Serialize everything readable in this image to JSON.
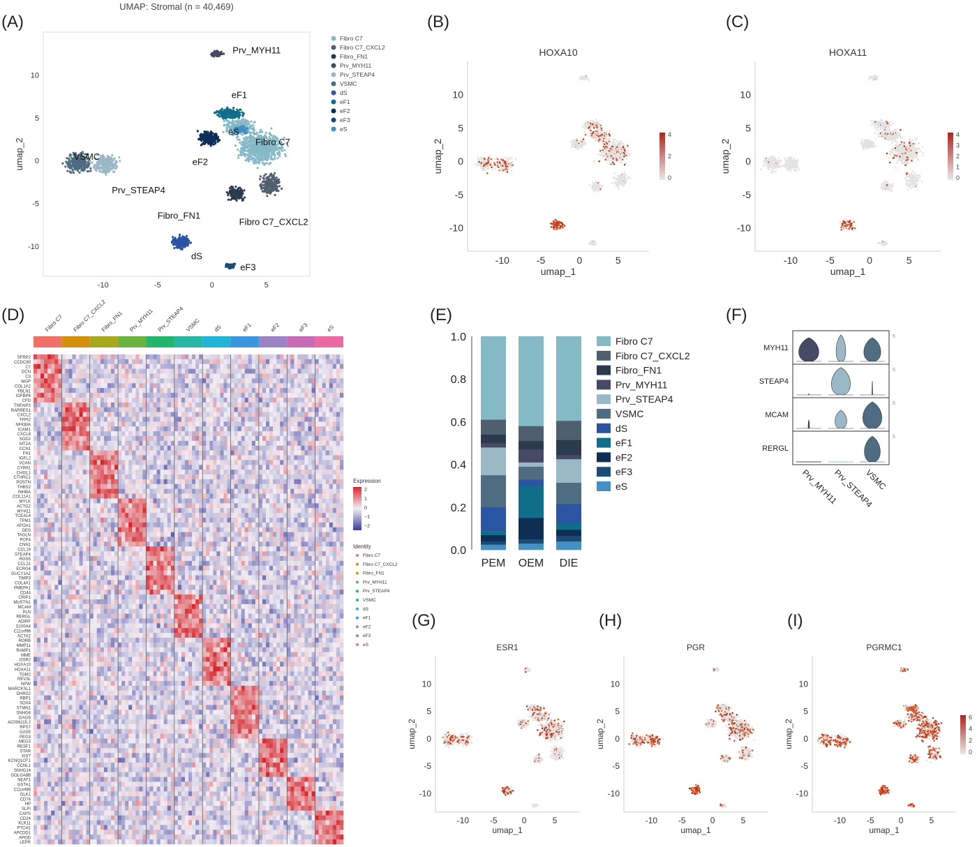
{
  "panel_labels": [
    "(A)",
    "(B)",
    "(C)",
    "(D)",
    "(E)",
    "(F)",
    "(G)",
    "(H)",
    "(I)"
  ],
  "colors": {
    "Fibro C7": "#86b9c6",
    "Fibro C7_CXCL2": "#505f6e",
    "Fibro_FN1": "#2c3a4d",
    "Prv_MYH11": "#474a65",
    "Prv_STEAP4": "#9bb8c6",
    "VSMC": "#4e6d82",
    "dS": "#2b55a3",
    "eF1": "#106e8a",
    "eF2": "#0f2e56",
    "eF3": "#1a4c77",
    "eS": "#4590c2",
    "expr_low": "#e8e8e8",
    "expr_high": "#b2231d",
    "heat_low": "#3b3c9c",
    "heat_mid": "#f2eef4",
    "heat_high": "#d6262b"
  },
  "chart_data": [
    {
      "id": "A",
      "type": "scatter",
      "title": "UMAP: Stromal (n = 40,469)",
      "xlabel": "",
      "ylabel": "umap_2",
      "xticks": [
        -10,
        -5,
        0,
        5
      ],
      "yticks": [
        10,
        5,
        0,
        -5,
        -10
      ],
      "xlim": [
        -15.5,
        9
      ],
      "ylim": [
        -13.5,
        15
      ],
      "legend_position": "top-right",
      "legend": [
        "Fibro C7",
        "Fibro C7_CXCL2",
        "Fibro_FN1",
        "Prv_MYH11",
        "Prv_STEAP4",
        "VSMC",
        "dS",
        "eF1",
        "eF2",
        "eF3",
        "eS"
      ],
      "clusters": [
        {
          "name": "Fibro C7",
          "x": 4.5,
          "y": 1.5,
          "label": "Fibro C7",
          "lx": 4.0,
          "ly": 1.8
        },
        {
          "name": "Fibro C7_CXCL2",
          "x": 5.3,
          "y": -3.5,
          "label": "Fibro C7_CXCL2",
          "lx": 2.5,
          "ly": -7.5
        },
        {
          "name": "Fibro_FN1",
          "x": 2.0,
          "y": -4.2,
          "label": "Fibro_FN1",
          "lx": -5.0,
          "ly": -6.8
        },
        {
          "name": "Prv_MYH11",
          "x": 0.5,
          "y": 12.5,
          "label": "Prv_MYH11",
          "lx": 1.9,
          "ly": 12.5
        },
        {
          "name": "Prv_STEAP4",
          "x": -9.5,
          "y": -0.2,
          "label": "Prv_STEAP4",
          "lx": -9.2,
          "ly": -3.8
        },
        {
          "name": "VSMC",
          "x": -12.5,
          "y": -0.5,
          "label": "VSMC",
          "lx": -12.7,
          "ly": 0.1
        },
        {
          "name": "dS",
          "x": -2.8,
          "y": -9.7,
          "label": "dS",
          "lx": -1.9,
          "ly": -11.5
        },
        {
          "name": "eF1",
          "x": 1.5,
          "y": 5.5,
          "label": "eF1",
          "lx": 1.8,
          "ly": 7.3
        },
        {
          "name": "eF2",
          "x": -0.3,
          "y": 2.2,
          "label": "eF2",
          "lx": -1.8,
          "ly": -0.5
        },
        {
          "name": "eF3",
          "x": 1.6,
          "y": -12.3,
          "label": "eF3",
          "lx": 2.6,
          "ly": -12.8
        },
        {
          "name": "eS",
          "x": 2.5,
          "y": 3.5,
          "label": "eS",
          "lx": 1.5,
          "ly": 3.0
        }
      ]
    },
    {
      "id": "B",
      "type": "scatter",
      "title": "HOXA10",
      "xlabel": "umap_1",
      "ylabel": "umap_2",
      "xticks": [
        -10,
        -5,
        0,
        5
      ],
      "yticks": [
        10,
        5,
        0,
        -5,
        -10
      ],
      "colorbar": [
        "4",
        "2",
        "0"
      ]
    },
    {
      "id": "C",
      "type": "scatter",
      "title": "HOXA11",
      "xlabel": "umap_1",
      "ylabel": "umap_2",
      "xticks": [
        -10,
        -5,
        0,
        5
      ],
      "yticks": [
        10,
        5,
        0,
        -5,
        -10
      ],
      "colorbar": [
        "4",
        "3",
        "2",
        "1",
        "0"
      ]
    },
    {
      "id": "D",
      "type": "heatmap",
      "columns": [
        "Fibro C7",
        "Fibro C7_CXCL2",
        "Fibro_FN1",
        "Prv_MYH11",
        "Prv_STEAP4",
        "VSMC",
        "dS",
        "eF1",
        "eF2",
        "eF3",
        "eS"
      ],
      "column_colors": [
        "#ee7068",
        "#d4900b",
        "#a8a81e",
        "#6bb341",
        "#25b46b",
        "#27b6a1",
        "#22b4d6",
        "#3b96df",
        "#9b84c4",
        "#c66cb5",
        "#eb6aa4"
      ],
      "genes": [
        "SFRP2",
        "CCDC80",
        "C7",
        "DCN",
        "C3",
        "MGP",
        "COL1A2",
        "FBLN1",
        "IGFBP6",
        "CFD",
        "TNFAIP3",
        "RARRES1",
        "CXCL2",
        "TFPI2",
        "NFKBIA",
        "ICAM1",
        "CXCL8",
        "SOD2",
        "MT2A",
        "CCN1",
        "FN1",
        "IGFL2",
        "VCAN",
        "CYR61",
        "CHI3L1",
        "CTHRC1",
        "POSTN",
        "THBS2",
        "INHBA",
        "COL11A1",
        "MYLK",
        "ACTG2",
        "MYH11",
        "TCEAL4",
        "TPM1",
        "APOA1",
        "DES",
        "TAGLN",
        "PCP4",
        "CNN1",
        "CCL19",
        "STEAP4",
        "RGS5",
        "CCL21",
        "ECRG4",
        "GUCY1A2",
        "TIMP3",
        "COL4A1",
        "PMEPA1",
        "CD44",
        "CRIP1",
        "MUSTN1",
        "MCAM",
        "PLN",
        "RERGL",
        "ADIRF",
        "S100A4",
        "C11orf96",
        "ACTA2",
        "RORB",
        "MMP11",
        "RAMP1",
        "MME",
        "OSR2",
        "HOXA10",
        "HOXA11",
        "TGM2",
        "REV3L",
        "NPW",
        "MARCKSL1",
        "DHRS2",
        "RBP1",
        "SOX4",
        "STMN1",
        "SNHG6",
        "GAGS",
        "AC006115.2",
        "RPS7",
        "GAS5",
        "PEG3",
        "MEG3",
        "RESF1",
        "STAR",
        "XIST",
        "KCNQ1OT1",
        "CCNL1",
        "SNHG14",
        "GOLGA8B",
        "NEAT1",
        "GSTA1",
        "C11orf88",
        "DLK1",
        "CD74",
        "HP",
        "SLPI",
        "CAPS",
        "CD24",
        "KLK11",
        "PTCH1",
        "APCDD1",
        "APOD",
        "LEPR"
      ],
      "legend_expression_title": "Expression",
      "legend_expression_ticks": [
        "2",
        "1",
        "0",
        "−1",
        "−2"
      ],
      "legend_identity_title": "Identity"
    },
    {
      "id": "E",
      "type": "bar",
      "stacked": true,
      "categories": [
        "PEM",
        "OEM",
        "DIE"
      ],
      "yticks": [
        "1.0",
        "0.8",
        "0.6",
        "0.4",
        "0.2",
        "0.0"
      ],
      "ylim": [
        0,
        1
      ],
      "legend_position": "right",
      "series": [
        {
          "name": "eS",
          "values": [
            0.025,
            0.03,
            0.04
          ]
        },
        {
          "name": "eF3",
          "values": [
            0.015,
            0.02,
            0.025
          ]
        },
        {
          "name": "eF2",
          "values": [
            0.03,
            0.1,
            0.03
          ]
        },
        {
          "name": "eF1",
          "values": [
            0.02,
            0.15,
            0.03
          ]
        },
        {
          "name": "dS",
          "values": [
            0.11,
            0.03,
            0.09
          ]
        },
        {
          "name": "VSMC",
          "values": [
            0.15,
            0.06,
            0.1
          ]
        },
        {
          "name": "Prv_STEAP4",
          "values": [
            0.13,
            0.02,
            0.11
          ]
        },
        {
          "name": "Prv_MYH11",
          "values": [
            0.02,
            0.06,
            0.02
          ]
        },
        {
          "name": "Fibro_FN1",
          "values": [
            0.04,
            0.04,
            0.07
          ]
        },
        {
          "name": "Fibro C7_CXCL2",
          "values": [
            0.07,
            0.07,
            0.09
          ]
        },
        {
          "name": "Fibro C7",
          "values": [
            0.39,
            0.42,
            0.395
          ]
        }
      ],
      "legend": [
        "Fibro C7",
        "Fibro C7_CXCL2",
        "Fibro_FN1",
        "Prv_MYH11",
        "Prv_STEAP4",
        "VSMC",
        "dS",
        "eF1",
        "eF2",
        "eF3",
        "eS"
      ]
    },
    {
      "id": "F",
      "type": "violin",
      "genes": [
        "MYH11",
        "STEAP4",
        "MCAM",
        "RERGL"
      ],
      "groups": [
        "Prv_MYH11",
        "Prv_STEAP4",
        "VSMC"
      ],
      "group_colors": [
        "#474a65",
        "#9bb8c6",
        "#4e6d82"
      ],
      "ymax_labels": [
        "6",
        "5",
        "5",
        "5"
      ],
      "widths": [
        [
          0.95,
          0.45,
          0.8
        ],
        [
          0.02,
          0.9,
          0.02
        ],
        [
          0.05,
          0.55,
          0.9
        ],
        [
          0.0,
          0.0,
          0.75
        ]
      ],
      "heights": [
        [
          0.85,
          0.95,
          0.85
        ],
        [
          0.05,
          0.98,
          0.5
        ],
        [
          0.3,
          0.65,
          0.95
        ],
        [
          0.0,
          0.0,
          0.92
        ]
      ]
    },
    {
      "id": "G",
      "type": "scatter",
      "title": "ESR1",
      "xlabel": "umap_1",
      "ylabel": "umap_2",
      "xticks": [
        -10,
        -5,
        0,
        5
      ],
      "yticks": [
        10,
        5,
        0,
        -5,
        -10
      ]
    },
    {
      "id": "H",
      "type": "scatter",
      "title": "PGR",
      "xlabel": "umap_1",
      "ylabel": "umap_2",
      "xticks": [
        -10,
        -5,
        0,
        5
      ],
      "yticks": [
        10,
        5,
        0,
        -5,
        -10
      ]
    },
    {
      "id": "I",
      "type": "scatter",
      "title": "PGRMC1",
      "xlabel": "umap_1",
      "ylabel": "umap_2",
      "xticks": [
        -10,
        -5,
        0,
        5
      ],
      "yticks": [
        10,
        5,
        0,
        -5,
        -10
      ],
      "colorbar": [
        "6",
        "4",
        "2",
        "0"
      ]
    }
  ]
}
